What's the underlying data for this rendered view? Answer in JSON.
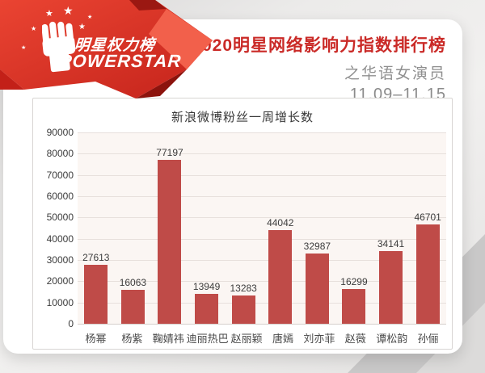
{
  "logo": {
    "brand_cn": "明星权力榜",
    "brand_en": "POWERSTAR"
  },
  "header": {
    "title": "2020明星网络影响力指数排行榜",
    "subtitle": "之华语女演员",
    "date_range": "11.09–11.15"
  },
  "colors": {
    "header_title_red": "#ca2a27",
    "ribbon_red": "#d93125",
    "bar_red": "#bf4b48",
    "plot_background": "#fbf6f3"
  },
  "chart_data": {
    "type": "bar",
    "title": "新浪微博粉丝一周增长数",
    "categories": [
      "杨幂",
      "杨紫",
      "鞠婧祎",
      "迪丽热巴",
      "赵丽颖",
      "唐嫣",
      "刘亦菲",
      "赵薇",
      "谭松韵",
      "孙俪"
    ],
    "values": [
      27613,
      16063,
      77197,
      13949,
      13283,
      44042,
      32987,
      16299,
      34141,
      46701
    ],
    "xlabel": "",
    "ylabel": "",
    "ylim": [
      0,
      90000
    ],
    "ytick_step": 10000,
    "bar_color": "#bf4b48",
    "grid": true,
    "legend": false
  }
}
